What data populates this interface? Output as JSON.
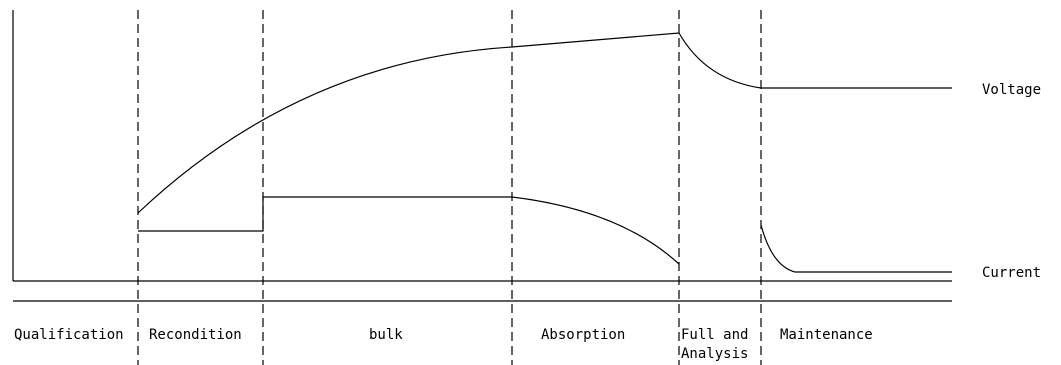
{
  "curve_labels": {
    "voltage": "Voltage",
    "current": "Current"
  },
  "stages": [
    {
      "id": "qualification",
      "lines": [
        "Qualification"
      ]
    },
    {
      "id": "recondition",
      "lines": [
        "Recondition"
      ]
    },
    {
      "id": "bulk",
      "lines": [
        "bulk"
      ]
    },
    {
      "id": "absorption",
      "lines": [
        "Absorption"
      ]
    },
    {
      "id": "full-and-analysis",
      "lines": [
        "Full and",
        "Analysis"
      ]
    },
    {
      "id": "maintenance",
      "lines": [
        "Maintenance"
      ]
    }
  ]
}
